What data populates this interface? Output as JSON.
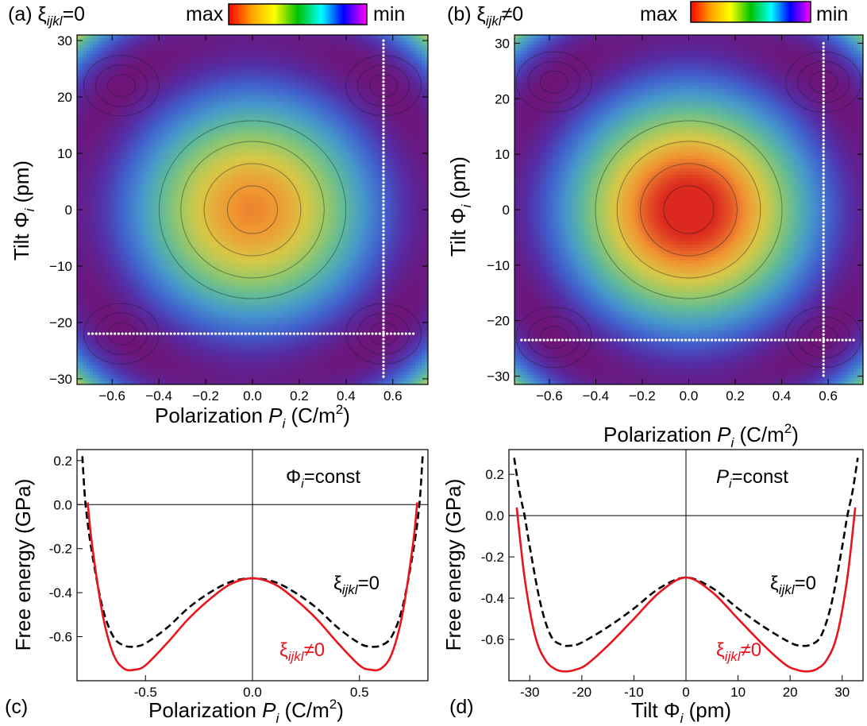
{
  "colorbar": {
    "max_label": "max",
    "min_label": "min"
  },
  "chart_data": [
    {
      "type": "heatmap",
      "panel_label": "(a)",
      "condition": {
        "greek": "ξ",
        "sub": "ijkl",
        "rest": "=0"
      },
      "xlabel": {
        "text": "Polarization ",
        "var": "P",
        "sub": "i",
        "unit": " (C/m",
        "sup": "2",
        "close": ")"
      },
      "ylabel": {
        "text": "Tilt  ",
        "var": "Φ",
        "sub": "i",
        "unit": " (pm)"
      },
      "xlim": [
        -0.75,
        0.75
      ],
      "ylim": [
        -31,
        31
      ],
      "xticks": [
        -0.6,
        -0.4,
        -0.2,
        0.0,
        0.2,
        0.4,
        0.6
      ],
      "xtick_labels": [
        "−0.6",
        "−0.4",
        "−0.2",
        "0.0",
        "0.2",
        "0.4",
        "0.6"
      ],
      "yticks": [
        -30,
        -20,
        -10,
        0,
        10,
        20,
        30
      ],
      "ytick_labels": [
        "−30",
        "−20",
        "−10",
        "0",
        "10",
        "20",
        "30"
      ],
      "minima": [
        [
          -0.56,
          22
        ],
        [
          0.56,
          22
        ],
        [
          -0.56,
          -22
        ],
        [
          0.56,
          -22
        ]
      ],
      "guide_lines": [
        {
          "orientation": "horizontal",
          "value": -22,
          "from": -0.7,
          "to": 0.7
        },
        {
          "orientation": "vertical",
          "value": 0.56,
          "from": -30,
          "to": 30
        }
      ],
      "colorscale": [
        "#ff0000",
        "#ffa500",
        "#ffff00",
        "#00c000",
        "#00ffff",
        "#0000ff",
        "#ff00ff"
      ]
    },
    {
      "type": "heatmap",
      "panel_label": "(b)",
      "condition": {
        "greek": "ξ",
        "sub": "ijkl",
        "rest": "≠0"
      },
      "xlabel": {
        "text": "Polarization ",
        "var": "P",
        "sub": "i",
        "unit": " (C/m",
        "sup": "2",
        "close": ")"
      },
      "ylabel": {
        "text": "Tilt  ",
        "var": "Φ",
        "sub": "i",
        "unit": " (pm)"
      },
      "xlim": [
        -0.75,
        0.75
      ],
      "ylim": [
        -31.5,
        31.5
      ],
      "xticks": [
        -0.6,
        -0.4,
        -0.2,
        0.0,
        0.2,
        0.4,
        0.6
      ],
      "xtick_labels": [
        "−0.6",
        "−0.4",
        "−0.2",
        "0.0",
        "0.2",
        "0.4",
        "0.6"
      ],
      "yticks": [
        -30,
        -20,
        -10,
        0,
        10,
        20,
        30
      ],
      "ytick_labels": [
        "−30",
        "−20",
        "−10",
        "0",
        "10",
        "20",
        "30"
      ],
      "minima": [
        [
          -0.58,
          23
        ],
        [
          0.58,
          23
        ],
        [
          -0.58,
          -23
        ],
        [
          0.58,
          -23
        ]
      ],
      "guide_lines": [
        {
          "orientation": "horizontal",
          "value": -23.5,
          "from": -0.72,
          "to": 0.72
        },
        {
          "orientation": "vertical",
          "value": 0.58,
          "from": -30,
          "to": 30
        }
      ]
    },
    {
      "type": "line",
      "panel_label": "(c)",
      "annotation": {
        "var": "Φ",
        "sub": "i",
        "rest": "=const"
      },
      "xlabel": {
        "text": "Polarization ",
        "var": "P",
        "sub": "i",
        "unit": " (C/m",
        "sup": "2",
        "close": ")"
      },
      "ylabel": "Free energy (GPa)",
      "xlim": [
        -0.82,
        0.82
      ],
      "ylim": [
        -0.8,
        0.25
      ],
      "xticks": [
        -0.5,
        0.0,
        0.5
      ],
      "xtick_labels": [
        "-0.5",
        "0.0",
        "0.5"
      ],
      "yticks": [
        0.2,
        0.0,
        -0.2,
        -0.4,
        -0.6
      ],
      "ytick_labels": [
        "0.2",
        "0.0",
        "-0.2",
        "-0.4",
        "-0.6"
      ],
      "series": [
        {
          "name_greek": "ξ",
          "name_sub": "ijkl",
          "name_rest": "=0",
          "style": "dashed",
          "color": "#000000",
          "x": [
            -0.795,
            -0.78,
            -0.75,
            -0.7,
            -0.65,
            -0.6,
            -0.55,
            -0.5,
            -0.4,
            -0.3,
            -0.2,
            -0.1,
            0.0,
            0.1,
            0.2,
            0.3,
            0.4,
            0.5,
            0.55,
            0.6,
            0.65,
            0.7,
            0.75,
            0.78,
            0.795
          ],
          "y": [
            0.22,
            0.0,
            -0.22,
            -0.47,
            -0.6,
            -0.64,
            -0.645,
            -0.63,
            -0.56,
            -0.47,
            -0.4,
            -0.35,
            -0.335,
            -0.35,
            -0.4,
            -0.47,
            -0.56,
            -0.63,
            -0.645,
            -0.64,
            -0.6,
            -0.47,
            -0.22,
            0.0,
            0.22
          ]
        },
        {
          "name_greek": "ξ",
          "name_sub": "ijkl",
          "name_rest": "≠0",
          "style": "solid",
          "color": "#e8141c",
          "x": [
            -0.77,
            -0.75,
            -0.7,
            -0.65,
            -0.6,
            -0.55,
            -0.5,
            -0.4,
            -0.3,
            -0.2,
            -0.1,
            0.0,
            0.1,
            0.2,
            0.3,
            0.4,
            0.5,
            0.55,
            0.6,
            0.65,
            0.7,
            0.75,
            0.77
          ],
          "y": [
            0.01,
            -0.18,
            -0.5,
            -0.68,
            -0.745,
            -0.75,
            -0.73,
            -0.63,
            -0.52,
            -0.43,
            -0.36,
            -0.335,
            -0.36,
            -0.43,
            -0.52,
            -0.63,
            -0.73,
            -0.75,
            -0.745,
            -0.68,
            -0.5,
            -0.18,
            0.01
          ]
        }
      ]
    },
    {
      "type": "line",
      "panel_label": "(d)",
      "annotation": {
        "var": "P",
        "sub": "i",
        "rest": "=const"
      },
      "xlabel": {
        "text": "Tilt  ",
        "var": "Φ",
        "sub": "i",
        "unit": " (pm)"
      },
      "ylabel": "Free energy (GPa)",
      "xlim": [
        -34,
        34
      ],
      "ylim": [
        -0.8,
        0.32
      ],
      "xticks": [
        -30,
        -20,
        -10,
        0,
        10,
        20,
        30
      ],
      "xtick_labels": [
        "-30",
        "-20",
        "-10",
        "0",
        "10",
        "20",
        "30"
      ],
      "yticks": [
        0.2,
        0.0,
        -0.2,
        -0.4,
        -0.6
      ],
      "ytick_labels": [
        "0.2",
        "0.0",
        "-0.2",
        "-0.4",
        "-0.6"
      ],
      "series": [
        {
          "name_greek": "ξ",
          "name_sub": "ijkl",
          "name_rest": "=0",
          "style": "dashed",
          "color": "#000000",
          "x": [
            -33,
            -32,
            -31,
            -30,
            -28,
            -26,
            -24,
            -22,
            -20,
            -15,
            -10,
            -5,
            0,
            5,
            10,
            15,
            20,
            22,
            24,
            26,
            28,
            30,
            31,
            32,
            33
          ],
          "y": [
            0.28,
            0.12,
            0.0,
            -0.15,
            -0.42,
            -0.58,
            -0.625,
            -0.63,
            -0.615,
            -0.54,
            -0.45,
            -0.35,
            -0.3,
            -0.35,
            -0.45,
            -0.54,
            -0.615,
            -0.63,
            -0.625,
            -0.58,
            -0.42,
            -0.15,
            0.0,
            0.12,
            0.28
          ]
        },
        {
          "name_greek": "ξ",
          "name_sub": "ijkl",
          "name_rest": "≠0",
          "style": "solid",
          "color": "#e8141c",
          "x": [
            -32.5,
            -31,
            -29,
            -27,
            -25,
            -23,
            -21,
            -19,
            -15,
            -10,
            -5,
            0,
            5,
            10,
            15,
            19,
            21,
            23,
            25,
            27,
            29,
            31,
            32.5
          ],
          "y": [
            0.04,
            -0.3,
            -0.58,
            -0.7,
            -0.745,
            -0.755,
            -0.745,
            -0.72,
            -0.63,
            -0.5,
            -0.37,
            -0.3,
            -0.37,
            -0.5,
            -0.63,
            -0.72,
            -0.745,
            -0.755,
            -0.745,
            -0.7,
            -0.58,
            -0.3,
            0.04
          ]
        }
      ]
    }
  ]
}
